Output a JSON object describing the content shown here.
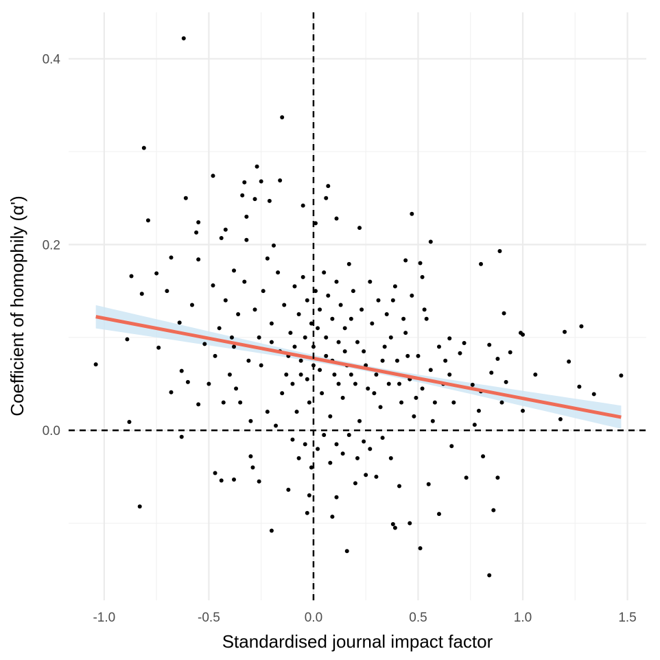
{
  "chart_data": {
    "type": "scatter",
    "title": "",
    "xlabel": "Standardised journal impact factor",
    "ylabel": "Coefficient of homophily (α')",
    "xlim": [
      -1.17,
      1.59
    ],
    "ylim": [
      -0.183,
      0.45
    ],
    "x_ticks": [
      {
        "value": -1.0,
        "label": "-1.0"
      },
      {
        "value": -0.5,
        "label": "-0.5"
      },
      {
        "value": 0.0,
        "label": "0.0"
      },
      {
        "value": 0.5,
        "label": "0.5"
      },
      {
        "value": 1.0,
        "label": "1.0"
      },
      {
        "value": 1.5,
        "label": "1.5"
      }
    ],
    "y_ticks": [
      {
        "value": 0.0,
        "label": "0.0"
      },
      {
        "value": 0.2,
        "label": "0.2"
      },
      {
        "value": 0.4,
        "label": "0.4"
      }
    ],
    "x_minor_grid": [
      -0.75,
      -0.25,
      0.25,
      0.75,
      1.25
    ],
    "y_minor_grid": [
      -0.1,
      0.1,
      0.3
    ],
    "grid": true,
    "reference_lines": {
      "x": 0,
      "y": 0,
      "style": "dashed",
      "color": "#000000"
    },
    "fit": {
      "type": "linear",
      "x_range": [
        -1.04,
        1.47
      ],
      "intercept": 0.0775,
      "slope": -0.0431,
      "ci_halfwidth_at_ends": 0.0125,
      "ci_halfwidth_at_center": 0.003,
      "line_color": "#EF6C57",
      "band_color": "#CFE6F5"
    },
    "point_color": "#000000",
    "points": [
      [
        -0.62,
        0.422
      ],
      [
        -0.15,
        0.337
      ],
      [
        -0.81,
        0.304
      ],
      [
        -0.48,
        0.274
      ],
      [
        -0.27,
        0.284
      ],
      [
        -0.33,
        0.267
      ],
      [
        -0.25,
        0.268
      ],
      [
        -0.16,
        0.269
      ],
      [
        -0.61,
        0.25
      ],
      [
        -0.34,
        0.253
      ],
      [
        -0.28,
        0.249
      ],
      [
        -0.21,
        0.247
      ],
      [
        0.07,
        0.263
      ],
      [
        0.06,
        0.25
      ],
      [
        -0.05,
        0.242
      ],
      [
        -0.79,
        0.226
      ],
      [
        -0.55,
        0.224
      ],
      [
        -0.32,
        0.23
      ],
      [
        -0.42,
        0.216
      ],
      [
        0.11,
        0.228
      ],
      [
        -0.56,
        0.213
      ],
      [
        0.22,
        0.218
      ],
      [
        -0.44,
        0.207
      ],
      [
        -0.32,
        0.205
      ],
      [
        0.01,
        0.223
      ],
      [
        -0.68,
        0.186
      ],
      [
        -0.75,
        0.169
      ],
      [
        -0.55,
        0.184
      ],
      [
        -0.19,
        0.199
      ],
      [
        0.47,
        0.233
      ],
      [
        0.56,
        0.203
      ],
      [
        0.89,
        0.193
      ],
      [
        0.8,
        0.179
      ],
      [
        -0.87,
        0.166
      ],
      [
        -0.82,
        0.147
      ],
      [
        -0.7,
        0.15
      ],
      [
        -0.58,
        0.135
      ],
      [
        -0.64,
        0.116
      ],
      [
        -0.48,
        0.156
      ],
      [
        -0.38,
        0.172
      ],
      [
        -0.22,
        0.185
      ],
      [
        0.17,
        0.179
      ],
      [
        0.44,
        0.183
      ],
      [
        0.51,
        0.18
      ],
      [
        0.52,
        0.165
      ],
      [
        -0.89,
        0.098
      ],
      [
        -0.74,
        0.089
      ],
      [
        -0.52,
        0.093
      ],
      [
        -1.04,
        0.071
      ],
      [
        -0.63,
        0.064
      ],
      [
        -0.68,
        0.041
      ],
      [
        -0.6,
        0.052
      ],
      [
        -0.55,
        0.028
      ],
      [
        -0.88,
        0.009
      ],
      [
        -0.63,
        -0.007
      ],
      [
        -0.83,
        -0.082
      ],
      [
        -0.47,
        -0.046
      ],
      [
        -0.44,
        -0.054
      ],
      [
        -0.38,
        -0.053
      ],
      [
        -0.3,
        -0.028
      ],
      [
        -0.29,
        -0.04
      ],
      [
        -0.26,
        -0.055
      ],
      [
        -0.2,
        -0.108
      ],
      [
        -0.12,
        -0.064
      ],
      [
        -0.03,
        -0.089
      ],
      [
        -0.02,
        -0.07
      ],
      [
        0.09,
        -0.093
      ],
      [
        0.16,
        -0.13
      ],
      [
        0.11,
        -0.072
      ],
      [
        0.2,
        -0.057
      ],
      [
        0.25,
        -0.048
      ],
      [
        0.3,
        -0.05
      ],
      [
        0.38,
        -0.101
      ],
      [
        0.39,
        -0.105
      ],
      [
        0.41,
        -0.06
      ],
      [
        0.46,
        -0.1
      ],
      [
        0.51,
        -0.127
      ],
      [
        0.55,
        -0.058
      ],
      [
        0.6,
        -0.09
      ],
      [
        0.73,
        -0.051
      ],
      [
        0.81,
        -0.028
      ],
      [
        0.84,
        -0.156
      ],
      [
        0.86,
        -0.086
      ],
      [
        0.88,
        -0.051
      ],
      [
        0.66,
        -0.017
      ],
      [
        1.06,
        0.06
      ],
      [
        1.18,
        0.012
      ],
      [
        1.22,
        0.074
      ],
      [
        1.27,
        0.047
      ],
      [
        1.34,
        0.039
      ],
      [
        1.47,
        0.059
      ],
      [
        1.2,
        0.106
      ],
      [
        1.28,
        0.112
      ],
      [
        0.99,
        0.105
      ],
      [
        1.0,
        0.103
      ],
      [
        0.94,
        0.084
      ],
      [
        0.91,
        0.126
      ],
      [
        0.92,
        0.052
      ],
      [
        0.88,
        0.077
      ],
      [
        0.85,
        0.062
      ],
      [
        0.8,
        0.042
      ],
      [
        0.79,
        0.021
      ],
      [
        0.76,
        0.049
      ],
      [
        0.72,
        0.094
      ],
      [
        0.7,
        0.083
      ],
      [
        1.0,
        0.021
      ],
      [
        0.9,
        0.03
      ],
      [
        0.84,
        0.092
      ],
      [
        0.77,
        0.006
      ],
      [
        0.65,
        0.099
      ],
      [
        -0.4,
        0.06
      ],
      [
        -0.35,
        0.03
      ],
      [
        -0.3,
        0.01
      ],
      [
        -0.25,
        0.07
      ],
      [
        -0.22,
        0.02
      ],
      [
        -0.18,
        0.005
      ],
      [
        -0.15,
        0.04
      ],
      [
        -0.12,
        0.08
      ],
      [
        -0.1,
        0.05
      ],
      [
        -0.08,
        0.02
      ],
      [
        -0.06,
        0.06
      ],
      [
        -0.04,
        0.1
      ],
      [
        -0.02,
        0.03
      ],
      [
        0.0,
        0.07
      ],
      [
        0.02,
        0.11
      ],
      [
        0.04,
        0.04
      ],
      [
        0.06,
        0.08
      ],
      [
        0.08,
        0.015
      ],
      [
        0.1,
        0.06
      ],
      [
        0.12,
        0.095
      ],
      [
        0.14,
        0.035
      ],
      [
        0.16,
        0.07
      ],
      [
        0.18,
        0.12
      ],
      [
        0.2,
        0.05
      ],
      [
        0.22,
        0.01
      ],
      [
        0.24,
        0.085
      ],
      [
        0.26,
        0.045
      ],
      [
        0.28,
        0.115
      ],
      [
        0.3,
        0.06
      ],
      [
        0.32,
        0.025
      ],
      [
        0.34,
        0.09
      ],
      [
        0.36,
        0.05
      ],
      [
        0.38,
        0.14
      ],
      [
        0.4,
        0.075
      ],
      [
        0.42,
        0.03
      ],
      [
        0.44,
        0.105
      ],
      [
        0.46,
        0.055
      ],
      [
        0.48,
        0.015
      ],
      [
        0.5,
        0.08
      ],
      [
        0.52,
        0.045
      ],
      [
        0.54,
        0.12
      ],
      [
        0.56,
        0.065
      ],
      [
        0.58,
        0.03
      ],
      [
        0.6,
        0.09
      ],
      [
        0.62,
        0.05
      ],
      [
        -0.45,
        0.11
      ],
      [
        -0.42,
        0.14
      ],
      [
        -0.38,
        0.09
      ],
      [
        -0.36,
        0.125
      ],
      [
        -0.33,
        0.16
      ],
      [
        -0.31,
        0.075
      ],
      [
        -0.28,
        0.13
      ],
      [
        -0.26,
        0.1
      ],
      [
        -0.24,
        0.15
      ],
      [
        -0.2,
        0.115
      ],
      [
        -0.17,
        0.17
      ],
      [
        -0.14,
        0.135
      ],
      [
        -0.11,
        0.105
      ],
      [
        -0.09,
        0.155
      ],
      [
        -0.07,
        0.125
      ],
      [
        -0.05,
        0.165
      ],
      [
        -0.03,
        0.14
      ],
      [
        -0.01,
        0.115
      ],
      [
        0.01,
        0.15
      ],
      [
        0.03,
        0.13
      ],
      [
        0.05,
        0.17
      ],
      [
        0.07,
        0.145
      ],
      [
        0.09,
        0.12
      ],
      [
        0.11,
        0.16
      ],
      [
        0.13,
        0.135
      ],
      [
        0.15,
        0.11
      ],
      [
        0.19,
        0.15
      ],
      [
        0.23,
        0.13
      ],
      [
        0.27,
        0.16
      ],
      [
        0.31,
        0.14
      ],
      [
        0.35,
        0.125
      ],
      [
        0.39,
        0.155
      ],
      [
        0.43,
        0.12
      ],
      [
        0.47,
        0.145
      ],
      [
        0.53,
        0.13
      ],
      [
        -0.1,
        -0.01
      ],
      [
        -0.07,
        -0.03
      ],
      [
        -0.04,
        -0.015
      ],
      [
        -0.01,
        -0.04
      ],
      [
        0.02,
        -0.02
      ],
      [
        0.05,
        -0.005
      ],
      [
        0.08,
        -0.035
      ],
      [
        0.11,
        -0.015
      ],
      [
        0.14,
        -0.025
      ],
      [
        0.17,
        -0.005
      ],
      [
        0.21,
        -0.03
      ],
      [
        0.24,
        -0.012
      ],
      [
        0.27,
        -0.02
      ],
      [
        0.33,
        -0.008
      ],
      [
        0.37,
        -0.03
      ],
      [
        -0.2,
        0.095
      ],
      [
        -0.16,
        0.085
      ],
      [
        -0.13,
        0.06
      ],
      [
        -0.09,
        0.09
      ],
      [
        -0.06,
        0.075
      ],
      [
        -0.03,
        0.055
      ],
      [
        0.0,
        0.09
      ],
      [
        0.03,
        0.065
      ],
      [
        0.06,
        0.1
      ],
      [
        0.09,
        0.075
      ],
      [
        0.12,
        0.05
      ],
      [
        0.15,
        0.085
      ],
      [
        0.18,
        0.06
      ],
      [
        0.21,
        0.095
      ],
      [
        0.25,
        0.07
      ],
      [
        0.29,
        0.04
      ],
      [
        0.33,
        0.075
      ],
      [
        0.37,
        0.1
      ],
      [
        0.41,
        0.05
      ],
      [
        0.45,
        0.08
      ],
      [
        -0.5,
        0.05
      ],
      [
        -0.47,
        0.08
      ],
      [
        -0.43,
        0.03
      ],
      [
        -0.39,
        0.1
      ],
      [
        -0.37,
        0.045
      ],
      [
        0.65,
        0.06
      ],
      [
        0.67,
        0.03
      ],
      [
        0.63,
        0.075
      ],
      [
        0.57,
        0.01
      ],
      [
        0.49,
        0.035
      ]
    ]
  }
}
